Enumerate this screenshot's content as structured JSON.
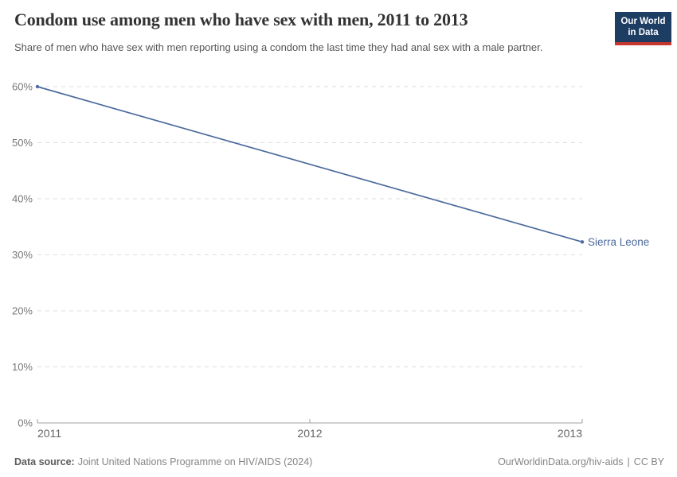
{
  "header": {
    "logo": {
      "line1": "Our World",
      "line2": "in Data",
      "bg_color": "#1d3d63",
      "stripe_color": "#c6362d",
      "text_color": "#ffffff"
    }
  },
  "chart_data": {
    "type": "line",
    "title": "Condom use among men who have sex with men, 2011 to 2013",
    "subtitle": "Share of men who have sex with men reporting using a condom the last time they had anal sex with a male partner.",
    "xlim": [
      2011,
      2013
    ],
    "ylim": [
      0,
      60
    ],
    "x_ticks": [
      {
        "value": 2011,
        "label": "2011"
      },
      {
        "value": 2012,
        "label": "2012"
      },
      {
        "value": 2013,
        "label": "2013"
      }
    ],
    "y_ticks": [
      {
        "value": 0,
        "label": "0%"
      },
      {
        "value": 10,
        "label": "10%"
      },
      {
        "value": 20,
        "label": "20%"
      },
      {
        "value": 30,
        "label": "30%"
      },
      {
        "value": 40,
        "label": "40%"
      },
      {
        "value": 50,
        "label": "50%"
      },
      {
        "value": 60,
        "label": "60%"
      }
    ],
    "grid": "horizontal-dashed",
    "legend": "line-end-label",
    "series": [
      {
        "name": "Sierra Leone",
        "color": "#4C6A9C",
        "points": [
          {
            "x": 2011,
            "y": 60
          },
          {
            "x": 2013,
            "y": 32.3
          }
        ]
      }
    ]
  },
  "footer": {
    "data_source_label": "Data source:",
    "data_source_value": "Joint United Nations Programme on HIV/AIDS (2024)",
    "link": "OurWorldinData.org/hiv-aids",
    "separator": "|",
    "license": "CC BY"
  },
  "colors": {
    "title": "#333333",
    "subtitle": "#555555",
    "grid": "#dddddd",
    "axis": "#a1a1a1",
    "tick_label": "#777777",
    "footer": "#858585"
  }
}
